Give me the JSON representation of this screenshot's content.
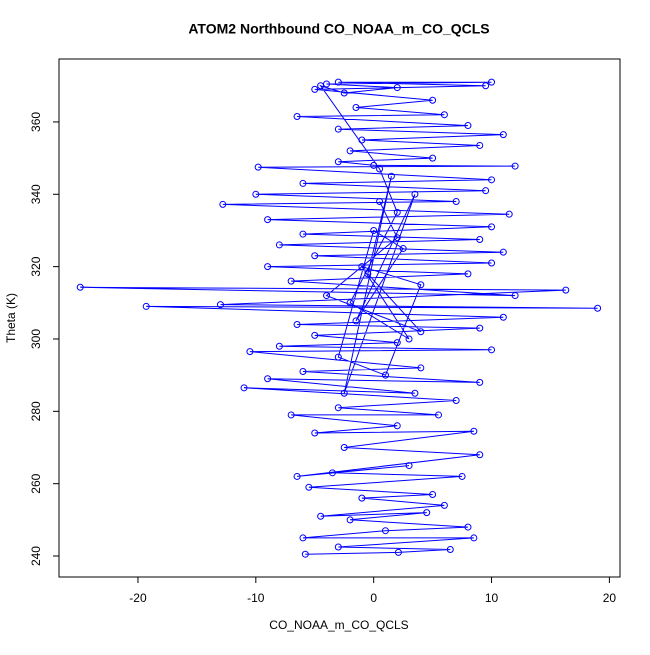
{
  "chart_data": {
    "type": "line",
    "markers": true,
    "title": "ATOM2 Northbound CO_NOAA_m_CO_QCLS",
    "xlabel": "CO_NOAA_m_CO_QCLS",
    "ylabel": "Theta (K)",
    "color": "#0000ff",
    "xlim": [
      -26.7,
      20.9
    ],
    "ylim": [
      234.2,
      377.4
    ],
    "xticks": [
      -20,
      -10,
      0,
      10,
      20
    ],
    "yticks": [
      240,
      260,
      280,
      300,
      320,
      340,
      360
    ],
    "x": [
      -5.8,
      2.1,
      6.5,
      -3,
      8.5,
      -6,
      1,
      8,
      -2,
      4.5,
      -4.5,
      6,
      -1,
      5,
      -5.5,
      7.5,
      -3.5,
      3,
      -6.5,
      9,
      -2.5,
      8.5,
      -5,
      2,
      -7,
      5.5,
      -3,
      7,
      -11,
      3.5,
      -9,
      9,
      -6,
      4,
      -10.5,
      10,
      -8,
      2,
      -5,
      9,
      -6.5,
      11,
      -19.3,
      19,
      -13,
      16.3,
      -24.9,
      12,
      -7,
      8,
      -9,
      10,
      -5,
      11,
      -8,
      9,
      -6,
      10,
      -9,
      11.5,
      -12.8,
      7,
      -10,
      9.5,
      -6,
      10,
      -9.8,
      12,
      0,
      -3,
      5,
      -2,
      9,
      -1,
      11,
      -3,
      8,
      -6.5,
      6,
      -1.5,
      5,
      -5,
      9.5,
      -3,
      10,
      -4,
      2,
      -2.5,
      -4.5,
      0.5,
      2,
      -2,
      3,
      -1,
      4,
      1,
      -3,
      0,
      2.5,
      -1.5,
      3.5,
      -2.5,
      1.5,
      -0.5,
      4,
      -4,
      2,
      0.5
    ],
    "values": [
      240.5,
      241,
      241.8,
      242.5,
      245,
      245,
      247,
      248,
      250,
      252,
      251,
      254,
      256,
      257,
      259,
      262,
      263,
      265,
      262,
      268,
      270,
      274.5,
      274,
      276,
      279,
      279,
      281,
      283,
      286.5,
      285,
      289,
      288,
      291,
      292,
      296.5,
      297,
      298,
      299,
      301,
      303,
      304,
      306,
      309,
      308.5,
      309.5,
      313.5,
      314.3,
      312,
      316,
      318,
      320,
      321,
      323,
      324,
      326,
      327.5,
      329,
      331,
      333,
      334.5,
      337.2,
      338,
      340,
      341,
      343,
      344,
      347.5,
      347.8,
      348,
      349,
      350,
      352,
      353.5,
      355,
      356.5,
      358,
      359,
      361.5,
      362,
      364,
      366,
      369,
      370,
      371,
      371,
      370.5,
      369.5,
      368,
      370,
      347,
      335,
      310,
      300,
      320,
      315,
      290,
      295,
      330,
      325,
      305,
      340,
      285,
      345,
      318,
      302,
      312,
      328,
      338
    ]
  }
}
